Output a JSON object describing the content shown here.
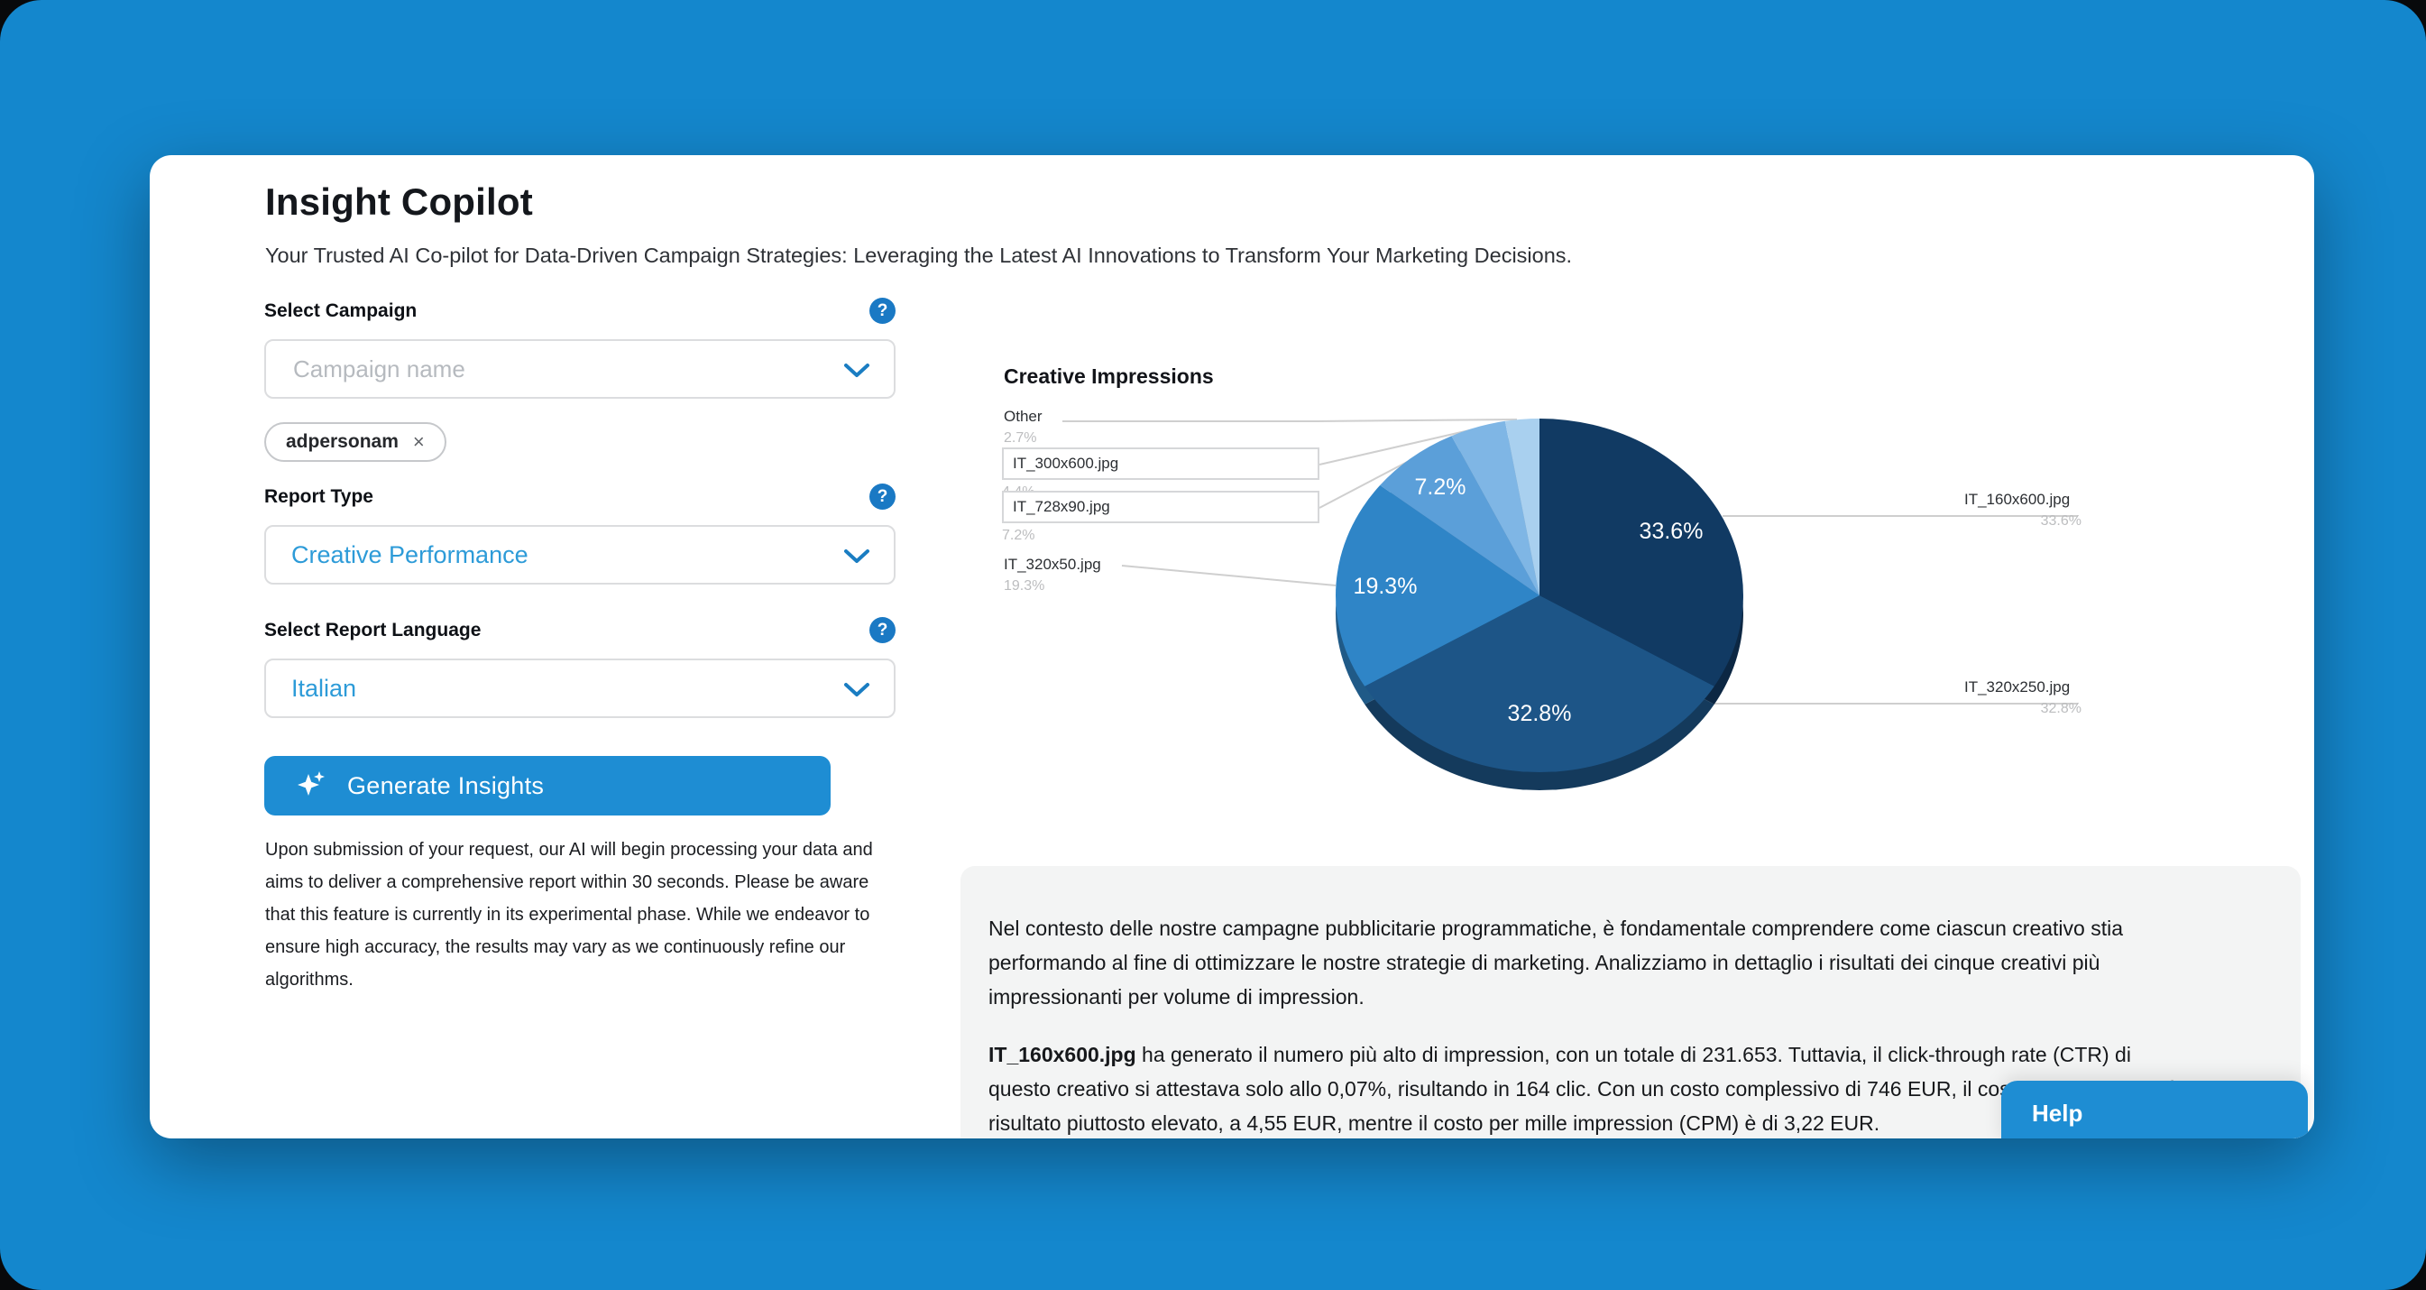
{
  "app": {
    "help_button": "Help"
  },
  "icons": {
    "help": "?",
    "close": "×"
  },
  "header": {
    "title": "Insight Copilot",
    "subtitle": "Your Trusted AI Co-pilot for Data-Driven Campaign Strategies: Leveraging the Latest AI Innovations to Transform Your Marketing Decisions."
  },
  "form": {
    "campaign": {
      "label": "Select Campaign",
      "placeholder": "Campaign name",
      "selected_tag": "adpersonam"
    },
    "report_type": {
      "label": "Report Type",
      "value": "Creative Performance"
    },
    "language": {
      "label": "Select Report Language",
      "value": "Italian"
    },
    "generate_button": "Generate Insights",
    "disclaimer": "Upon submission of your request, our AI will begin processing your data and aims to deliver a comprehensive report within 30 seconds. Please be aware that this feature is currently in its experimental phase. While we endeavor to ensure high accuracy, the results may vary as we continuously refine our algorithms."
  },
  "chart_data": {
    "type": "pie",
    "title": "Creative Impressions",
    "legend_position": "outside labels with leader lines",
    "style": "3d-pie",
    "slices": [
      {
        "label": "IT_160x600.jpg",
        "value": 33.6,
        "pct": "33.6%",
        "color": "#113a63"
      },
      {
        "label": "IT_320x250.jpg",
        "value": 32.8,
        "pct": "32.8%",
        "color": "#1d5587"
      },
      {
        "label": "IT_320x50.jpg",
        "value": 19.3,
        "pct": "19.3%",
        "color": "#2f85c7"
      },
      {
        "label": "IT_728x90.jpg",
        "value": 7.2,
        "pct": "7.2%",
        "color": "#5b9fd9"
      },
      {
        "label": "IT_300x600.jpg",
        "value": 4.4,
        "pct": "4.4%",
        "color": "#7fb6e5"
      },
      {
        "label": "Other",
        "value": 2.7,
        "pct": "2.7%",
        "color": "#a9d0ef"
      }
    ]
  },
  "report": {
    "paragraph_1": "Nel contesto delle nostre campagne pubblicitarie programmatiche, è fondamentale comprendere come ciascun creativo stia performando al fine di ottimizzare le nostre strategie di marketing. Analizziamo in dettaglio i risultati dei cinque creativi più impressionanti per volume di impression.",
    "paragraph_2_lead": "IT_160x600.jpg",
    "paragraph_2_rest": " ha generato il numero più alto di impression, con un totale di 231.653. Tuttavia, il click-through rate (CTR) di questo creativo si attestava solo allo 0,07%, risultando in 164 clic. Con un costo complessivo di 746 EUR, il costo per clic (CPC) è risultato piuttosto elevato, a 4,55 EUR, mentre il costo per mille impression (CPM) è di 3,22 EUR."
  },
  "colors": {
    "background_blue": "#1487cd",
    "accent_blue": "#1e8dd3",
    "dropdown_value_text": "#2d9bd8",
    "help_icon_blue": "#1a79c4"
  }
}
